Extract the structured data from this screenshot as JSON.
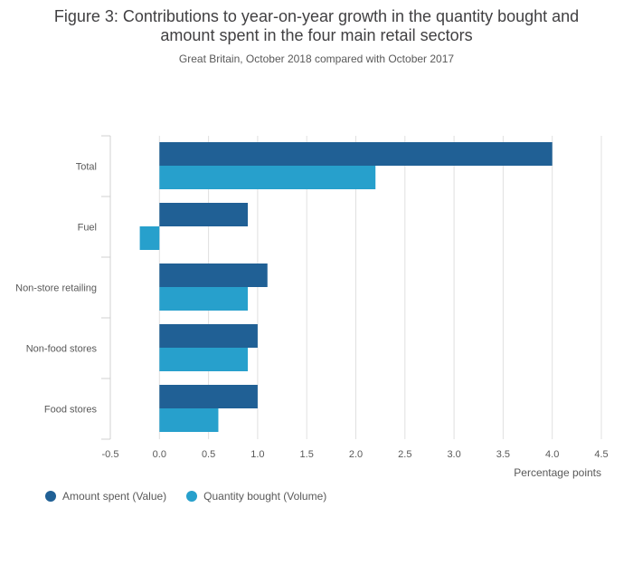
{
  "header": {
    "title_line1": "Figure 3: Contributions to year-on-year growth in the quantity bought and",
    "title_line2": "amount spent in the four main retail sectors",
    "subtitle": "Great Britain, October 2018 compared with October 2017"
  },
  "colors": {
    "value": "#206095",
    "volume": "#27a0cc",
    "grid": "#e0e0e0",
    "axis": "#d0d0d0",
    "text": "#595959"
  },
  "chart_data": {
    "type": "bar",
    "orientation": "horizontal",
    "categories": [
      "Total",
      "Fuel",
      "Non-store retailing",
      "Non-food stores",
      "Food stores"
    ],
    "series": [
      {
        "name": "Amount spent (Value)",
        "key": "value",
        "values": [
          4.0,
          0.9,
          1.1,
          1.0,
          1.0
        ]
      },
      {
        "name": "Quantity bought (Volume)",
        "key": "volume",
        "values": [
          2.2,
          -0.2,
          0.9,
          0.9,
          0.6
        ]
      }
    ],
    "xlim": [
      -0.5,
      4.5
    ],
    "xticks": [
      -0.5,
      0.0,
      0.5,
      1.0,
      1.5,
      2.0,
      2.5,
      3.0,
      3.5,
      4.0,
      4.5
    ],
    "xtick_labels": [
      "-0.5",
      "0.0",
      "0.5",
      "1.0",
      "1.5",
      "2.0",
      "2.5",
      "3.0",
      "3.5",
      "4.0",
      "4.5"
    ],
    "xlabel": "Percentage points",
    "ylabel": "",
    "grid": true,
    "legend_position": "bottom-left"
  }
}
